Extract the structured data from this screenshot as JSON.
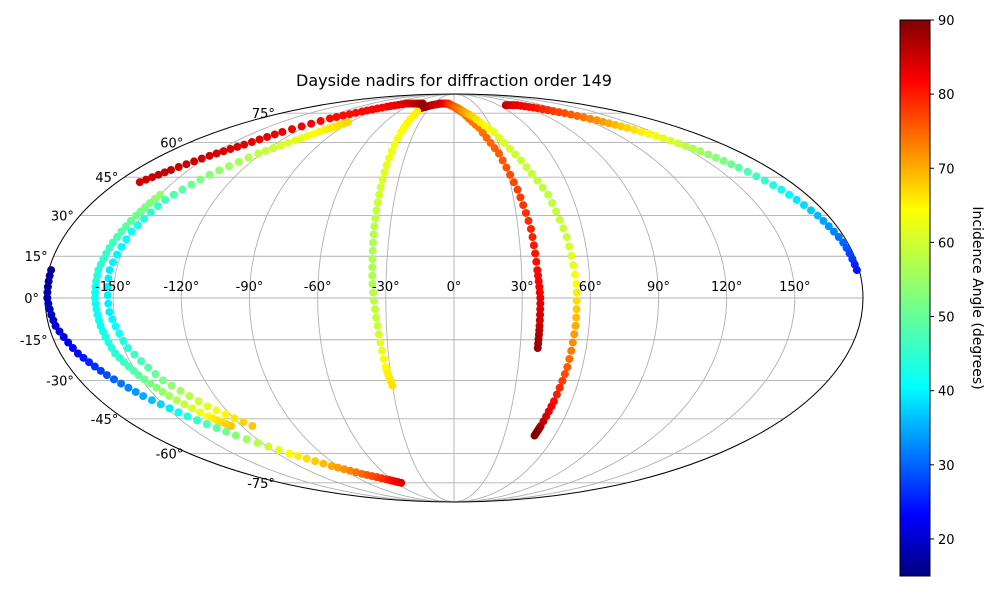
{
  "chart_data": {
    "type": "scatter",
    "projection": "mollweide",
    "title": "Dayside nadirs for diffraction order 149",
    "xlabel": "",
    "ylabel": "",
    "grid": true,
    "x_range": [
      -180,
      180
    ],
    "y_range": [
      -90,
      90
    ],
    "x_ticks": [
      -150,
      -120,
      -90,
      -60,
      -30,
      0,
      30,
      60,
      90,
      120,
      150
    ],
    "x_tick_labels": [
      "-150°",
      "-120°",
      "-90°",
      "-60°",
      "-30°",
      "0°",
      "30°",
      "60°",
      "90°",
      "120°",
      "150°"
    ],
    "y_ticks": [
      -75,
      -60,
      -45,
      -30,
      -15,
      0,
      15,
      30,
      45,
      60,
      75
    ],
    "y_tick_labels": [
      "-75°",
      "-60°",
      "-45°",
      "-30°",
      "-15°",
      "0°",
      "15°",
      "30°",
      "45°",
      "60°",
      "75°"
    ],
    "colorbar": {
      "label": "Incidence Angle (degrees)",
      "colormap": "jet",
      "range": [
        15,
        90
      ],
      "ticks": [
        20,
        30,
        40,
        50,
        60,
        70,
        80,
        90
      ],
      "tick_labels": [
        "20",
        "30",
        "40",
        "50",
        "60",
        "70",
        "80",
        "90"
      ],
      "placement": "right"
    },
    "series": [
      {
        "points": [
          [
            -40,
            78,
            90
          ],
          [
            -30,
            80,
            86
          ],
          [
            -20,
            81,
            82
          ],
          [
            -10,
            81,
            78
          ],
          [
            0,
            79,
            75
          ],
          [
            10,
            75,
            73
          ],
          [
            20,
            67,
            72
          ],
          [
            28,
            55,
            74
          ],
          [
            33,
            40,
            76
          ],
          [
            36,
            25,
            78
          ],
          [
            37,
            10,
            80
          ],
          [
            38,
            0,
            82
          ],
          [
            38,
            -10,
            85
          ],
          [
            38,
            -18,
            88
          ]
        ]
      },
      {
        "points": [
          [
            -20,
            81,
            86
          ],
          [
            -8,
            81,
            78
          ],
          [
            5,
            78,
            72
          ],
          [
            18,
            73,
            65
          ],
          [
            30,
            65,
            60
          ],
          [
            40,
            52,
            58
          ],
          [
            48,
            38,
            57
          ],
          [
            52,
            22,
            58
          ],
          [
            54,
            5,
            62
          ],
          [
            54,
            -10,
            68
          ],
          [
            53,
            -25,
            74
          ],
          [
            51,
            -38,
            80
          ],
          [
            49,
            -48,
            86
          ],
          [
            48,
            -52,
            90
          ]
        ]
      },
      {
        "points": [
          [
            -40,
            76,
            63
          ],
          [
            -40,
            65,
            62
          ],
          [
            -39,
            50,
            60
          ],
          [
            -38,
            35,
            58
          ],
          [
            -37,
            20,
            56
          ],
          [
            -36,
            5,
            56
          ],
          [
            -34,
            -10,
            58
          ],
          [
            -32,
            -25,
            62
          ],
          [
            -30,
            -32,
            64
          ]
        ]
      },
      {
        "points": [
          [
            -168,
            43,
            84
          ],
          [
            -160,
            48,
            85
          ],
          [
            -150,
            54,
            84
          ],
          [
            -140,
            59,
            83
          ],
          [
            -130,
            65,
            82
          ],
          [
            -115,
            72,
            80
          ],
          [
            -100,
            76,
            80
          ],
          [
            -85,
            79,
            81
          ],
          [
            -70,
            81,
            83
          ],
          [
            -55,
            81,
            85
          ],
          [
            -45,
            81,
            88
          ]
        ]
      },
      {
        "points": [
          [
            -150,
            38,
            54
          ],
          [
            -153,
            30,
            51
          ],
          [
            -156,
            20,
            48
          ],
          [
            -158,
            10,
            46
          ],
          [
            -158,
            0,
            44
          ],
          [
            -157,
            -10,
            44
          ],
          [
            -155,
            -20,
            46
          ],
          [
            -150,
            -28,
            50
          ],
          [
            -143,
            -36,
            55
          ],
          [
            -133,
            -44,
            62
          ],
          [
            -126,
            -48,
            66
          ]
        ]
      },
      {
        "points": [
          [
            -92,
            70,
            65
          ],
          [
            -100,
            66,
            63
          ],
          [
            -110,
            61,
            60
          ],
          [
            -122,
            55,
            57
          ],
          [
            -135,
            46,
            53
          ],
          [
            -145,
            36,
            48
          ],
          [
            -150,
            24,
            44
          ],
          [
            -153,
            10,
            42
          ],
          [
            -152,
            -5,
            42
          ],
          [
            -148,
            -18,
            46
          ],
          [
            -140,
            -30,
            52
          ],
          [
            -128,
            -40,
            60
          ],
          [
            -114,
            -48,
            66
          ]
        ]
      },
      {
        "points": [
          [
            -179,
            10,
            16
          ],
          [
            -179,
            0,
            18
          ],
          [
            -177,
            -10,
            21
          ],
          [
            -172,
            -20,
            25
          ],
          [
            -165,
            -28,
            30
          ],
          [
            -156,
            -36,
            37
          ],
          [
            -144,
            -44,
            45
          ],
          [
            -130,
            -52,
            53
          ],
          [
            -112,
            -60,
            62
          ],
          [
            -95,
            -66,
            68
          ],
          [
            -80,
            -70,
            73
          ],
          [
            -65,
            -73,
            78
          ],
          [
            -55,
            -75,
            83
          ]
        ]
      },
      {
        "points": [
          [
            70,
            80,
            85
          ],
          [
            85,
            80,
            82
          ],
          [
            100,
            78,
            79
          ],
          [
            115,
            75,
            75
          ],
          [
            128,
            71,
            70
          ],
          [
            138,
            67,
            65
          ],
          [
            148,
            62,
            60
          ],
          [
            156,
            56,
            55
          ],
          [
            163,
            49,
            50
          ],
          [
            170,
            40,
            44
          ],
          [
            175,
            30,
            38
          ],
          [
            178,
            20,
            32
          ],
          [
            179,
            10,
            26
          ]
        ]
      }
    ]
  }
}
